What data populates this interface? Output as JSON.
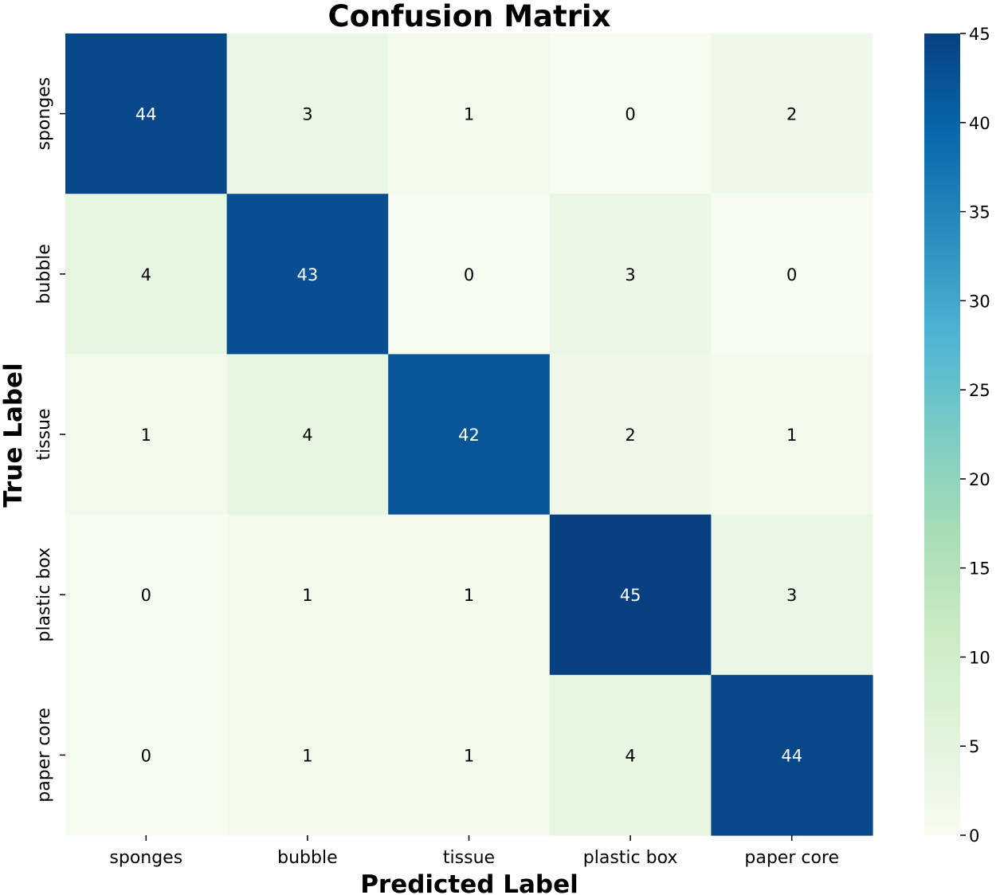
{
  "chart_data": {
    "type": "heatmap",
    "title": "Confusion Matrix",
    "xlabel": "Predicted Label",
    "ylabel": "True Label",
    "x_categories": [
      "sponges",
      "bubble",
      "tissue",
      "plastic box",
      "paper core"
    ],
    "y_categories": [
      "sponges",
      "bubble",
      "tissue",
      "plastic box",
      "paper core"
    ],
    "values": [
      [
        44,
        3,
        1,
        0,
        2
      ],
      [
        4,
        43,
        0,
        3,
        0
      ],
      [
        1,
        4,
        42,
        2,
        1
      ],
      [
        0,
        1,
        1,
        45,
        3
      ],
      [
        0,
        1,
        1,
        4,
        44
      ]
    ],
    "colorbar": {
      "colormap": "GnBu",
      "range": [
        0,
        45
      ],
      "ticks": [
        0,
        5,
        10,
        15,
        20,
        25,
        30,
        35,
        40,
        45
      ]
    },
    "grid": false
  }
}
